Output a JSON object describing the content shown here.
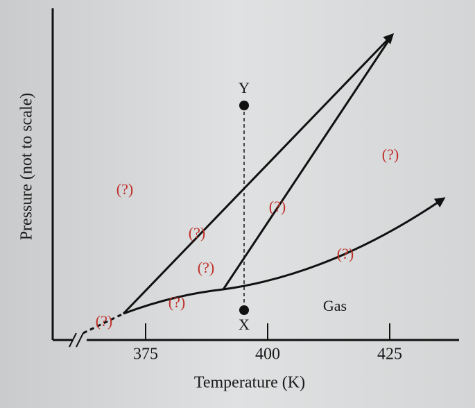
{
  "axes": {
    "x_label": "Temperature (K)",
    "y_label": "Pressure (not to scale)",
    "x_ticks": [
      "375",
      "400",
      "425"
    ]
  },
  "points": {
    "top": "Y",
    "bottom": "X"
  },
  "regions": {
    "gas": "Gas"
  },
  "unknown_labels": [
    "(?)",
    "(?)",
    "(?)",
    "(?)",
    "(?)",
    "(?)",
    "(?)",
    "(?)"
  ]
}
